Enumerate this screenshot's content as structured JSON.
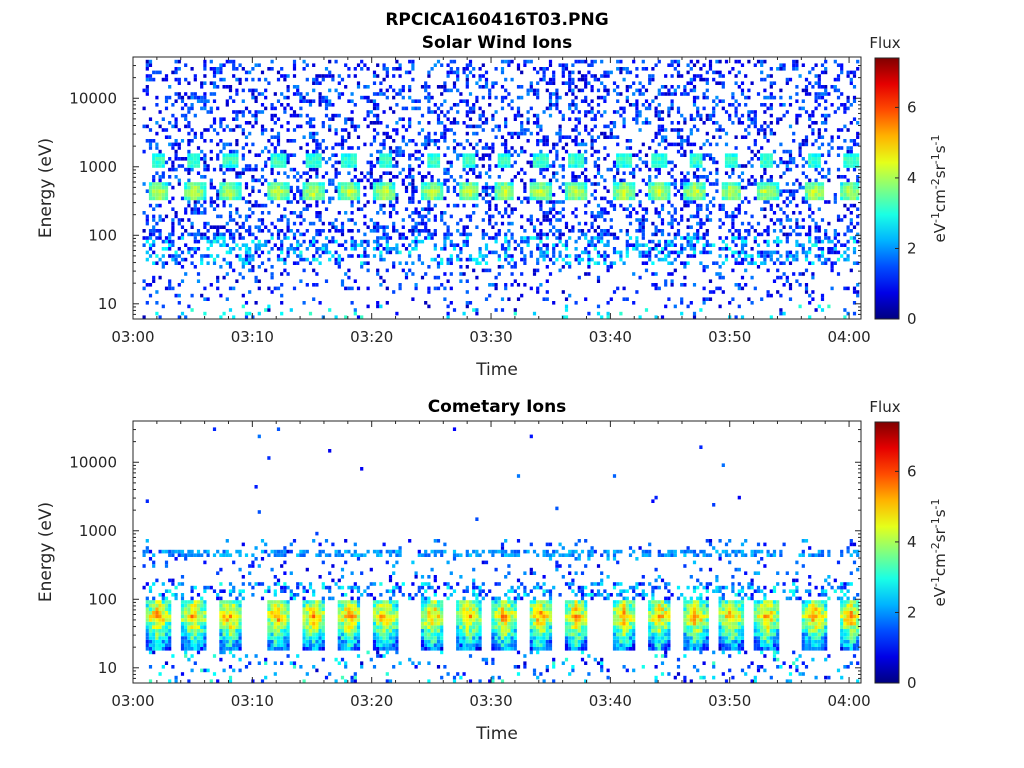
{
  "chart_data": [
    {
      "type": "heatmap",
      "figure_title": "RPCICA160416T03.PNG",
      "title": "Solar Wind Ions",
      "xlabel": "Time",
      "ylabel": "Energy (eV)",
      "x_ticks": [
        "03:00",
        "03:10",
        "03:20",
        "03:30",
        "03:40",
        "03:50",
        "04:00"
      ],
      "y_ticks": [
        "10",
        "100",
        "1000",
        "10000"
      ],
      "y_scale": "log",
      "xlim": [
        "03:00",
        "04:01"
      ],
      "ylim": [
        6,
        40000
      ],
      "colorbar": {
        "label_top": "Flux",
        "units": "eV-1cm-2sr-1s-1",
        "ticks": [
          "0",
          "2",
          "4",
          "6"
        ],
        "range": [
          0,
          7.4
        ],
        "colormap": "jet"
      },
      "features": {
        "main_peak_energy_eV": 450,
        "main_peak_flux": 4.0,
        "secondary_peak_energy_eV": 1300,
        "secondary_peak_flux": 3.0,
        "burst_times": [
          "03:02",
          "03:05",
          "03:08",
          "03:12",
          "03:15",
          "03:18",
          "03:21",
          "03:25",
          "03:28",
          "03:31",
          "03:34",
          "03:37",
          "03:41",
          "03:44",
          "03:47",
          "03:50",
          "03:53",
          "03:57",
          "04:00"
        ]
      }
    },
    {
      "type": "heatmap",
      "title": "Cometary Ions",
      "xlabel": "Time",
      "ylabel": "Energy (eV)",
      "x_ticks": [
        "03:00",
        "03:10",
        "03:20",
        "03:30",
        "03:40",
        "03:50",
        "04:00"
      ],
      "y_ticks": [
        "10",
        "100",
        "1000",
        "10000"
      ],
      "y_scale": "log",
      "xlim": [
        "03:00",
        "04:01"
      ],
      "ylim": [
        6,
        40000
      ],
      "colorbar": {
        "label_top": "Flux",
        "units": "eV-1cm-2sr-1s-1",
        "ticks": [
          "0",
          "2",
          "4",
          "6"
        ],
        "range": [
          0,
          7.4
        ],
        "colormap": "jet"
      },
      "features": {
        "main_peak_energy_eV": 60,
        "main_peak_flux": 5.0,
        "secondary_band_energy_eV": 500,
        "secondary_band_flux": 1.5,
        "burst_times": [
          "03:02",
          "03:05",
          "03:08",
          "03:12",
          "03:15",
          "03:18",
          "03:21",
          "03:25",
          "03:28",
          "03:31",
          "03:34",
          "03:37",
          "03:41",
          "03:44",
          "03:47",
          "03:50",
          "03:53",
          "03:57",
          "04:00"
        ]
      }
    }
  ]
}
